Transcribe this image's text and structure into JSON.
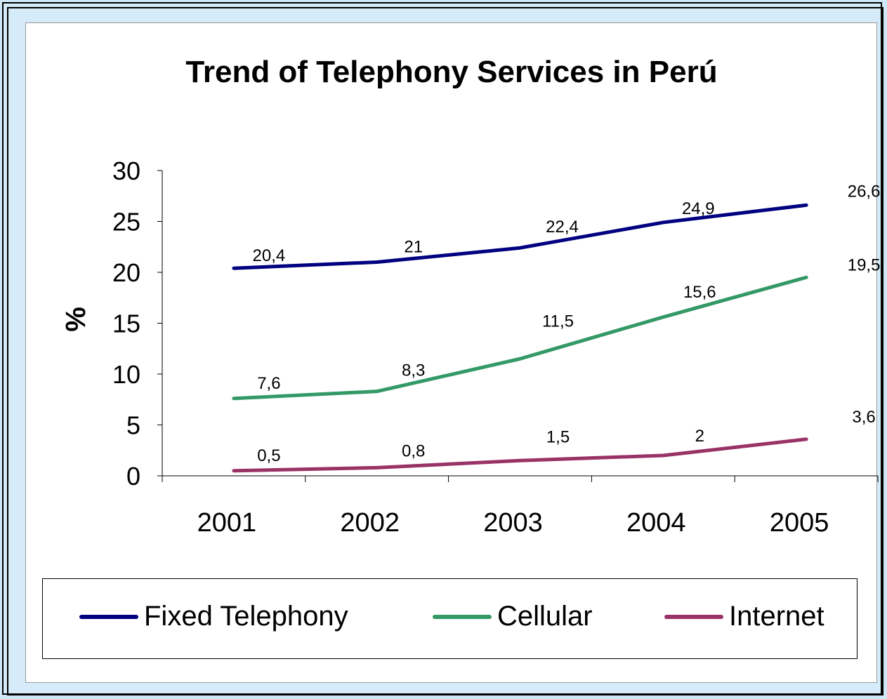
{
  "chart_data": {
    "type": "line",
    "title": "Trend of Telephony Services in Perú",
    "xlabel": "",
    "ylabel": "%",
    "categories": [
      "2001",
      "2002",
      "2003",
      "2004",
      "2005"
    ],
    "ylim": [
      0,
      30
    ],
    "yticks": [
      0,
      5,
      10,
      15,
      20,
      25,
      30
    ],
    "grid": false,
    "legend_position": "bottom",
    "series": [
      {
        "name": "Fixed Telephony",
        "color": "#000080",
        "values": [
          20.4,
          21,
          22.4,
          24.9,
          26.6
        ],
        "labels": [
          "20,4",
          "21",
          "22,4",
          "24,9",
          "26,6"
        ]
      },
      {
        "name": "Cellular",
        "color": "#339966",
        "values": [
          7.6,
          8.3,
          11.5,
          15.6,
          19.5
        ],
        "labels": [
          "7,6",
          "8,3",
          "11,5",
          "15,6",
          "19,5"
        ]
      },
      {
        "name": "Internet",
        "color": "#993366",
        "values": [
          0.5,
          0.8,
          1.5,
          2,
          3.6
        ],
        "labels": [
          "0,5",
          "0,8",
          "1,5",
          "2",
          "3,6"
        ]
      }
    ]
  }
}
